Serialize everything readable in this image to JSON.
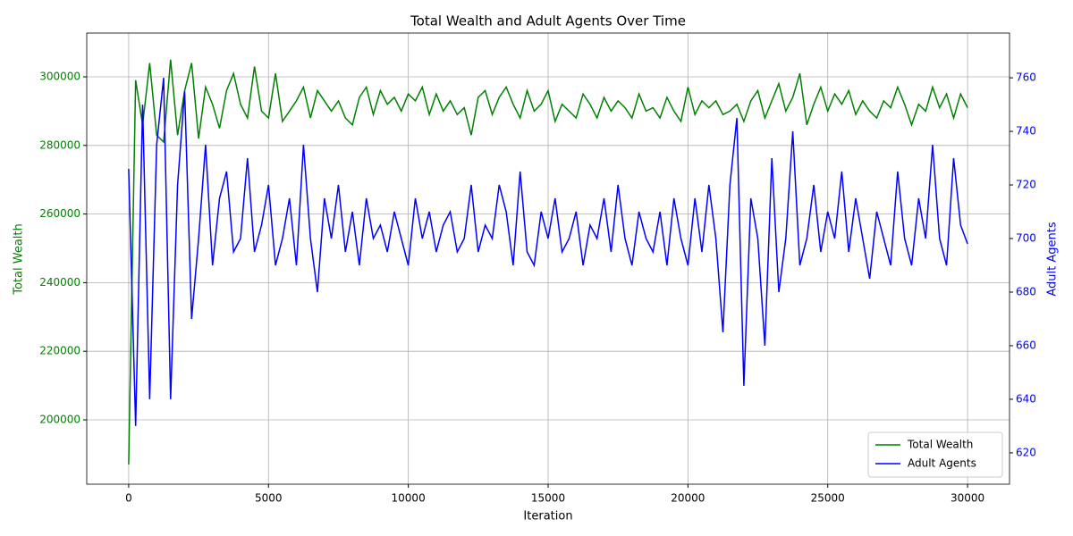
{
  "chart_data": {
    "type": "line",
    "title": "Total Wealth and Adult Agents Over Time",
    "xlabel": "Iteration",
    "ylabel": "Total Wealth",
    "y2label": "Adult Agents",
    "xlim": [
      -1500,
      31500
    ],
    "ylim": [
      181250,
      312760
    ],
    "y2lim": [
      608.3,
      776.7
    ],
    "xticks": [
      0,
      5000,
      10000,
      15000,
      20000,
      25000,
      30000
    ],
    "yticks": [
      200000,
      220000,
      240000,
      260000,
      280000,
      300000
    ],
    "y2ticks": [
      620,
      640,
      660,
      680,
      700,
      720,
      740,
      760
    ],
    "grid": true,
    "legend": "lower right",
    "x": [
      0,
      250,
      500,
      750,
      1000,
      1250,
      1500,
      1750,
      2000,
      2250,
      2500,
      2750,
      3000,
      3250,
      3500,
      3750,
      4000,
      4250,
      4500,
      4750,
      5000,
      5250,
      5500,
      5750,
      6000,
      6250,
      6500,
      6750,
      7000,
      7250,
      7500,
      7750,
      8000,
      8250,
      8500,
      8750,
      9000,
      9250,
      9500,
      9750,
      10000,
      10250,
      10500,
      10750,
      11000,
      11250,
      11500,
      11750,
      12000,
      12250,
      12500,
      12750,
      13000,
      13250,
      13500,
      13750,
      14000,
      14250,
      14500,
      14750,
      15000,
      15250,
      15500,
      15750,
      16000,
      16250,
      16500,
      16750,
      17000,
      17250,
      17500,
      17750,
      18000,
      18250,
      18500,
      18750,
      19000,
      19250,
      19500,
      19750,
      20000,
      20250,
      20500,
      20750,
      21000,
      21250,
      21500,
      21750,
      22000,
      22250,
      22500,
      22750,
      23000,
      23250,
      23500,
      23750,
      24000,
      24250,
      24500,
      24750,
      25000,
      25250,
      25500,
      25750,
      26000,
      26250,
      26500,
      26750,
      27000,
      27250,
      27500,
      27750,
      28000,
      28250,
      28500,
      28750,
      29000,
      29250,
      29500,
      29750,
      30000
    ],
    "series": [
      {
        "name": "Total Wealth",
        "color": "#008000",
        "axis": "y",
        "values": [
          187000,
          299000,
          286000,
          304000,
          283000,
          281000,
          305000,
          283000,
          296000,
          304000,
          282000,
          297000,
          292000,
          285000,
          296000,
          301000,
          292000,
          288000,
          303000,
          290000,
          288000,
          301000,
          287000,
          290000,
          293000,
          297000,
          288000,
          296000,
          293000,
          290000,
          293000,
          288000,
          286000,
          294000,
          297000,
          289000,
          296000,
          292000,
          294000,
          290000,
          295000,
          293000,
          297000,
          289000,
          295000,
          290000,
          293000,
          289000,
          291000,
          283000,
          294000,
          296000,
          289000,
          294000,
          297000,
          292000,
          288000,
          296000,
          290000,
          292000,
          296000,
          287000,
          292000,
          290000,
          288000,
          295000,
          292000,
          288000,
          294000,
          290000,
          293000,
          291000,
          288000,
          295000,
          290000,
          291000,
          288000,
          294000,
          290000,
          287000,
          297000,
          289000,
          293000,
          291000,
          293000,
          289000,
          290000,
          292000,
          287000,
          293000,
          296000,
          288000,
          293000,
          298000,
          290000,
          294000,
          301000,
          286000,
          292000,
          297000,
          290000,
          295000,
          292000,
          296000,
          289000,
          293000,
          290000,
          288000,
          293000,
          291000,
          297000,
          292000,
          286000,
          292000,
          290000,
          297000,
          291000,
          295000,
          288000,
          295000,
          291000
        ]
      },
      {
        "name": "Adult Agents",
        "color": "#0000ff",
        "axis": "y2",
        "values": [
          726,
          630,
          750,
          640,
          735,
          760,
          640,
          720,
          755,
          670,
          700,
          735,
          690,
          715,
          725,
          695,
          700,
          730,
          695,
          705,
          720,
          690,
          700,
          715,
          690,
          735,
          700,
          680,
          715,
          700,
          720,
          695,
          710,
          690,
          715,
          700,
          705,
          695,
          710,
          700,
          690,
          715,
          700,
          710,
          695,
          705,
          710,
          695,
          700,
          720,
          695,
          705,
          700,
          720,
          710,
          690,
          725,
          695,
          690,
          710,
          700,
          715,
          695,
          700,
          710,
          690,
          705,
          700,
          715,
          695,
          720,
          700,
          690,
          710,
          700,
          695,
          710,
          690,
          715,
          700,
          690,
          715,
          695,
          720,
          700,
          665,
          720,
          745,
          645,
          715,
          700,
          660,
          730,
          680,
          700,
          740,
          690,
          700,
          720,
          695,
          710,
          700,
          725,
          695,
          715,
          700,
          685,
          710,
          700,
          690,
          725,
          700,
          690,
          715,
          700,
          735,
          700,
          690,
          730,
          705,
          698
        ]
      }
    ]
  }
}
